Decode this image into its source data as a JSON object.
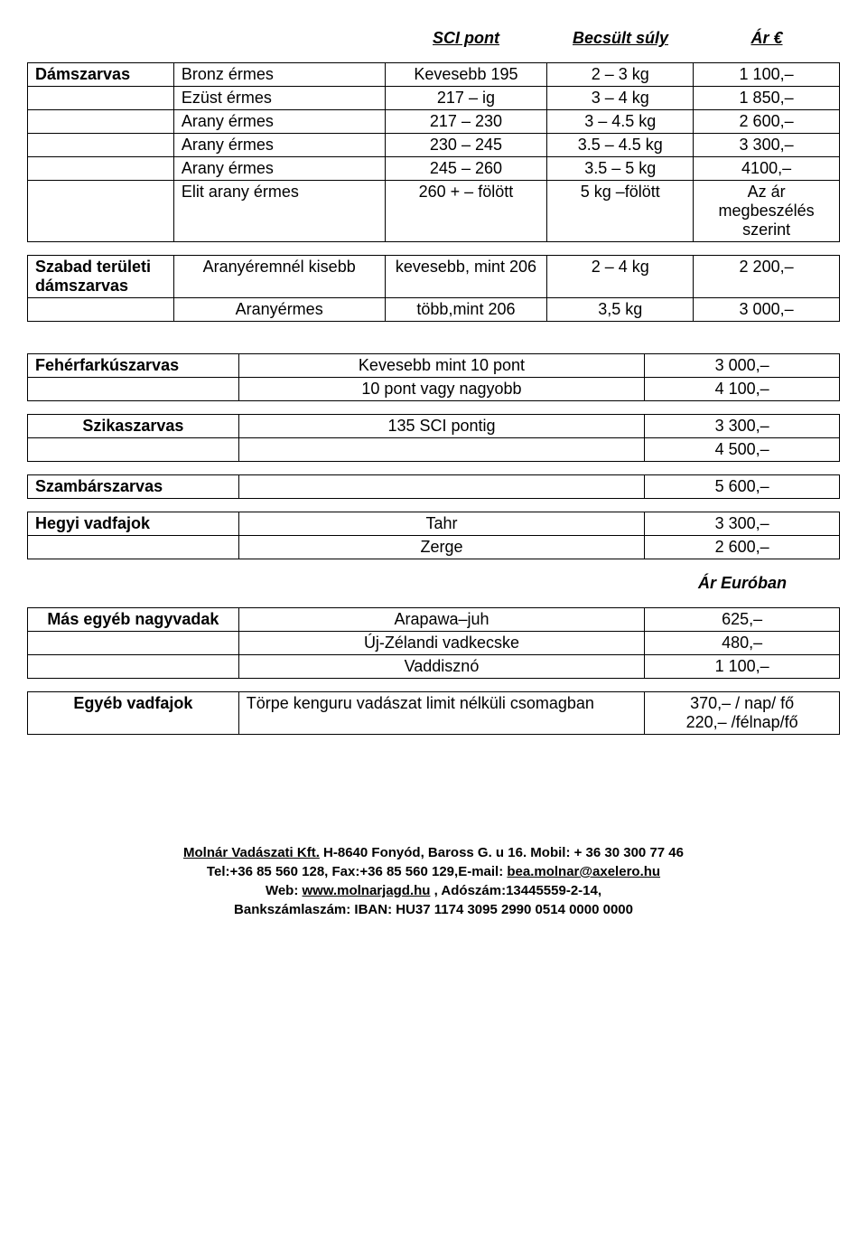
{
  "headers": {
    "sci": "SCI pont",
    "weight": "Becsült súly",
    "price": "Ár €"
  },
  "damszarvas": {
    "label": "Dámszarvas",
    "rows": [
      {
        "medal": "Bronz érmes",
        "sci": "Kevesebb 195",
        "weight": "2 – 3 kg",
        "price": "1 100,–"
      },
      {
        "medal": "Ezüst érmes",
        "sci": "217 – ig",
        "weight": "3 – 4 kg",
        "price": "1 850,–"
      },
      {
        "medal": "Arany érmes",
        "sci": "217 – 230",
        "weight": "3 – 4.5 kg",
        "price": "2 600,–"
      },
      {
        "medal": "Arany érmes",
        "sci": "230 – 245",
        "weight": "3.5 – 4.5 kg",
        "price": "3 300,–"
      },
      {
        "medal": "Arany érmes",
        "sci": "245 – 260",
        "weight": "3.5 – 5 kg",
        "price": "4100,–"
      },
      {
        "medal": "Elit arany érmes",
        "sci": "260 + – fölött",
        "weight": "5 kg –fölött",
        "price": "Az ár megbeszélés szerint"
      }
    ]
  },
  "szabad": {
    "label": "Szabad területi dámszarvas",
    "rows": [
      {
        "c1": "Aranyéremnél kisebb",
        "c2": "kevesebb, mint 206",
        "c3": "2 – 4 kg",
        "c4": "2 200,–"
      },
      {
        "c1": "Aranyérmes",
        "c2": "több,mint 206",
        "c3": "3,5 kg",
        "c4": "3 000,–"
      }
    ]
  },
  "feherfark": {
    "label": "Fehérfarkúszarvas",
    "rows": [
      {
        "b": "Kevesebb mint 10 pont",
        "c": "3 000,–"
      },
      {
        "b": "10 pont vagy nagyobb",
        "c": "4 100,–"
      }
    ]
  },
  "szika": {
    "label": "Szikaszarvas",
    "rows": [
      {
        "b": "135 SCI pontig",
        "c": "3 300,–"
      },
      {
        "b": "",
        "c": "4 500,–"
      }
    ]
  },
  "szambar": {
    "label": "Szambárszarvas",
    "price": "5 600,–"
  },
  "hegyi": {
    "label": "Hegyi vadfajok",
    "rows": [
      {
        "b": "Tahr",
        "c": "3 300,–"
      },
      {
        "b": "Zerge",
        "c": "2 600,–"
      }
    ]
  },
  "ar_euroban": "Ár Euróban",
  "mas": {
    "label": "Más egyéb nagyvadak",
    "rows": [
      {
        "b": "Arapawa–juh",
        "c": "625,–"
      },
      {
        "b": "Új-Zélandi vadkecske",
        "c": "480,–"
      },
      {
        "b": "Vaddisznó",
        "c": "1 100,–"
      }
    ]
  },
  "egyeb": {
    "label": "Egyéb vadfajok",
    "desc": "Törpe kenguru vadászat limit nélküli csomagban",
    "price1": "370,– / nap/ fő",
    "price2": "220,– /félnap/fő"
  },
  "footer": {
    "l1a": "Molnár Vadászati Kft.",
    "l1b": "H-8640 Fonyód, Baross G. u 16.",
    "l1c": "Mobil: + 36 30 300 77 46",
    "l2a": "Tel:+36 85 560 128, Fax:+36 85 560 129,E-mail: ",
    "l2b": "bea.molnar@axelero.hu",
    "l3a": "Web:",
    "l3b": "www.molnarjagd.hu",
    "l3c": ", Adószám:13445559-2-14,",
    "l4": "Bankszámlaszám: IBAN: HU37 1174 3095 2990 0514 0000 0000"
  }
}
